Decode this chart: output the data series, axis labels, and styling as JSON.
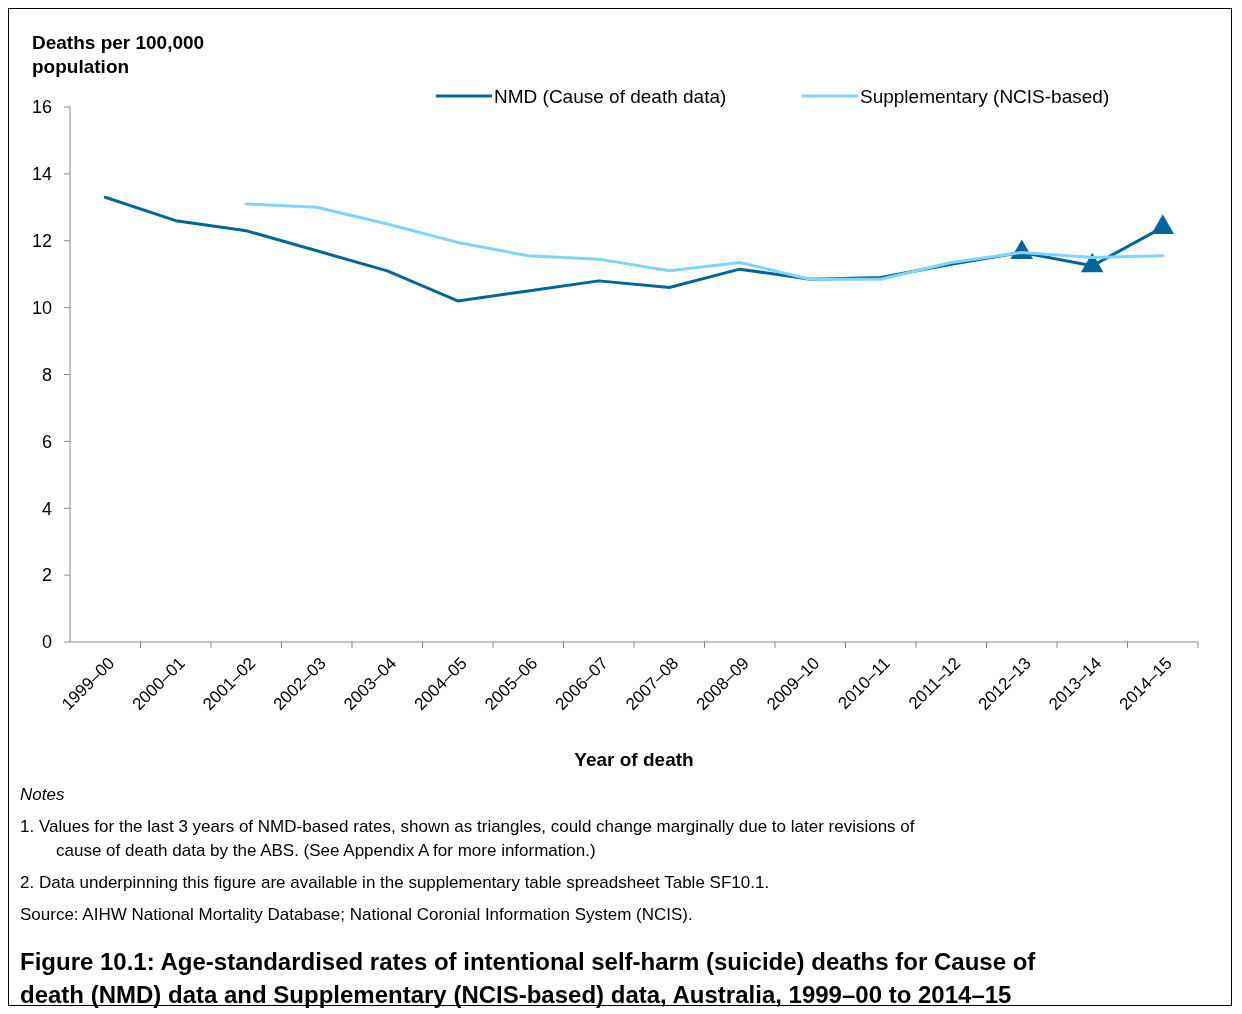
{
  "chart_data": {
    "type": "line",
    "title": "Figure 10.1: Age-standardised rates of intentional self-harm (suicide) deaths for Cause of death (NMD) data and Supplementary (NCIS-based) data, Australia, 1999–00 to 2014–15",
    "xlabel": "Year of death",
    "ylabel": "Deaths per 100,000 population",
    "categories": [
      "1999–00",
      "2000–01",
      "2001–02",
      "2002–03",
      "2003–04",
      "2004–05",
      "2005–06",
      "2006–07",
      "2007–08",
      "2008–09",
      "2009–10",
      "2010–11",
      "2011–12",
      "2012–13",
      "2013–14",
      "2014–15"
    ],
    "series": [
      {
        "name": "NMD (Cause of death data)",
        "color": "#006699",
        "values": [
          13.3,
          12.6,
          12.3,
          11.7,
          11.1,
          10.2,
          10.5,
          10.8,
          10.6,
          11.15,
          10.85,
          10.9,
          11.3,
          11.65,
          11.25,
          12.4
        ]
      },
      {
        "name": "Supplementary (NCIS-based)",
        "color": "#80d4ff",
        "values": [
          null,
          null,
          13.1,
          13.0,
          12.5,
          11.95,
          11.55,
          11.45,
          11.1,
          11.35,
          10.85,
          10.85,
          11.35,
          11.65,
          11.5,
          11.55
        ]
      },
      {
        "type": "scatter",
        "color": "#006699",
        "marker": "triangle",
        "x": [
          "2012–13",
          "2013–14",
          "2014–15"
        ],
        "values": [
          11.65,
          11.25,
          12.4
        ]
      }
    ],
    "ylim": [
      0,
      16
    ],
    "yticks": [
      0,
      2,
      4,
      6,
      8,
      10,
      12,
      14,
      16
    ],
    "grid": false,
    "legend": "top right",
    "marker": "none",
    "line_style": "solid",
    "annotations": [
      "Notes",
      "1.  Values for the last 3 years of NMD-based rates, shown as triangles, could change marginally due to later revisions of cause of death data by the ABS. (See Appendix A for more information.)",
      "2.  Data underpinning this figure are available in the supplementary table spreadsheet Table SF10.1.",
      "Source: AIHW National Mortality Database; National Coronial Information System (NCIS)."
    ]
  }
}
